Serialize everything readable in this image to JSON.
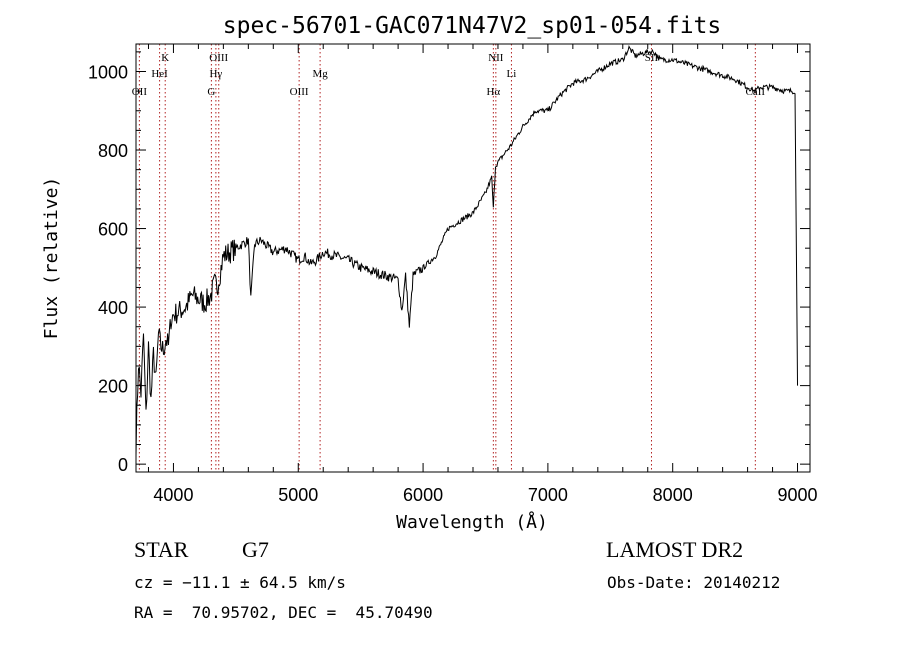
{
  "chart_data": {
    "type": "line",
    "title": "spec-56701-GAC071N47V2_sp01-054.fits",
    "xlabel": "Wavelength (Å)",
    "ylabel": "Flux (relative)",
    "xlim": [
      3700,
      9100
    ],
    "ylim": [
      -20,
      1070
    ],
    "xticks": [
      4000,
      5000,
      6000,
      7000,
      8000,
      9000
    ],
    "yticks": [
      0,
      200,
      400,
      600,
      800,
      1000
    ],
    "line_color": "#000000",
    "marker_color": "#b22222",
    "series": [
      {
        "x": [
          3700,
          3720,
          3740,
          3760,
          3780,
          3800,
          3820,
          3840,
          3860,
          3880,
          3900,
          3920,
          3940,
          3960,
          3980,
          4000,
          4050,
          4100,
          4150,
          4200,
          4250,
          4300,
          4330,
          4350,
          4400,
          4450,
          4500,
          4550,
          4600,
          4620,
          4650,
          4700,
          4800,
          4900,
          5000,
          5050,
          5100,
          5150,
          5200,
          5300,
          5400,
          5500,
          5600,
          5700,
          5800,
          5830,
          5860,
          5890,
          5920,
          6000,
          6100,
          6200,
          6300,
          6400,
          6500,
          6550,
          6563,
          6580,
          6650,
          6700,
          6800,
          6900,
          7000,
          7100,
          7200,
          7300,
          7400,
          7500,
          7600,
          7650,
          7700,
          7800,
          7850,
          7900,
          8000,
          8100,
          8200,
          8300,
          8400,
          8500,
          8600,
          8660,
          8700,
          8800,
          8900,
          8980,
          9000
        ],
        "y": [
          50,
          260,
          180,
          330,
          120,
          300,
          160,
          280,
          210,
          330,
          300,
          290,
          320,
          300,
          370,
          380,
          390,
          400,
          430,
          420,
          410,
          430,
          460,
          450,
          530,
          540,
          550,
          560,
          570,
          420,
          560,
          570,
          540,
          550,
          520,
          530,
          510,
          520,
          540,
          530,
          520,
          500,
          490,
          480,
          470,
          390,
          480,
          350,
          480,
          500,
          530,
          600,
          620,
          640,
          690,
          730,
          650,
          760,
          790,
          810,
          860,
          900,
          900,
          940,
          970,
          980,
          1000,
          1020,
          1030,
          1060,
          1040,
          1050,
          1050,
          1030,
          1030,
          1020,
          1010,
          1000,
          990,
          980,
          960,
          950,
          960,
          960,
          950,
          950,
          200
        ]
      }
    ],
    "line_markers": [
      {
        "x": 3727,
        "label": "OII",
        "row": 3
      },
      {
        "x": 3889,
        "label": "HeI",
        "row": 2
      },
      {
        "x": 3934,
        "label": "K",
        "row": 1
      },
      {
        "x": 4304,
        "label": "G",
        "row": 3
      },
      {
        "x": 4340,
        "label": "Hγ",
        "row": 2
      },
      {
        "x": 4363,
        "label": "OIII",
        "row": 1
      },
      {
        "x": 5007,
        "label": "OIII",
        "row": 3
      },
      {
        "x": 5175,
        "label": "Mg",
        "row": 2
      },
      {
        "x": 6563,
        "label": "Hα",
        "row": 3
      },
      {
        "x": 6583,
        "label": "NII",
        "row": 1
      },
      {
        "x": 6708,
        "label": "Li",
        "row": 2
      },
      {
        "x": 7830,
        "label": "SII",
        "row": 1
      },
      {
        "x": 8662,
        "label": "CaII",
        "row": 3
      }
    ]
  },
  "footer": {
    "object_type": "STAR",
    "subclass": "G7",
    "survey": "LAMOST DR2",
    "redshift_line": "cz = −11.1 ± 64.5 km/s",
    "obs_date": "Obs-Date: 20140212",
    "coords": "RA =  70.95702, DEC =  45.70490"
  }
}
